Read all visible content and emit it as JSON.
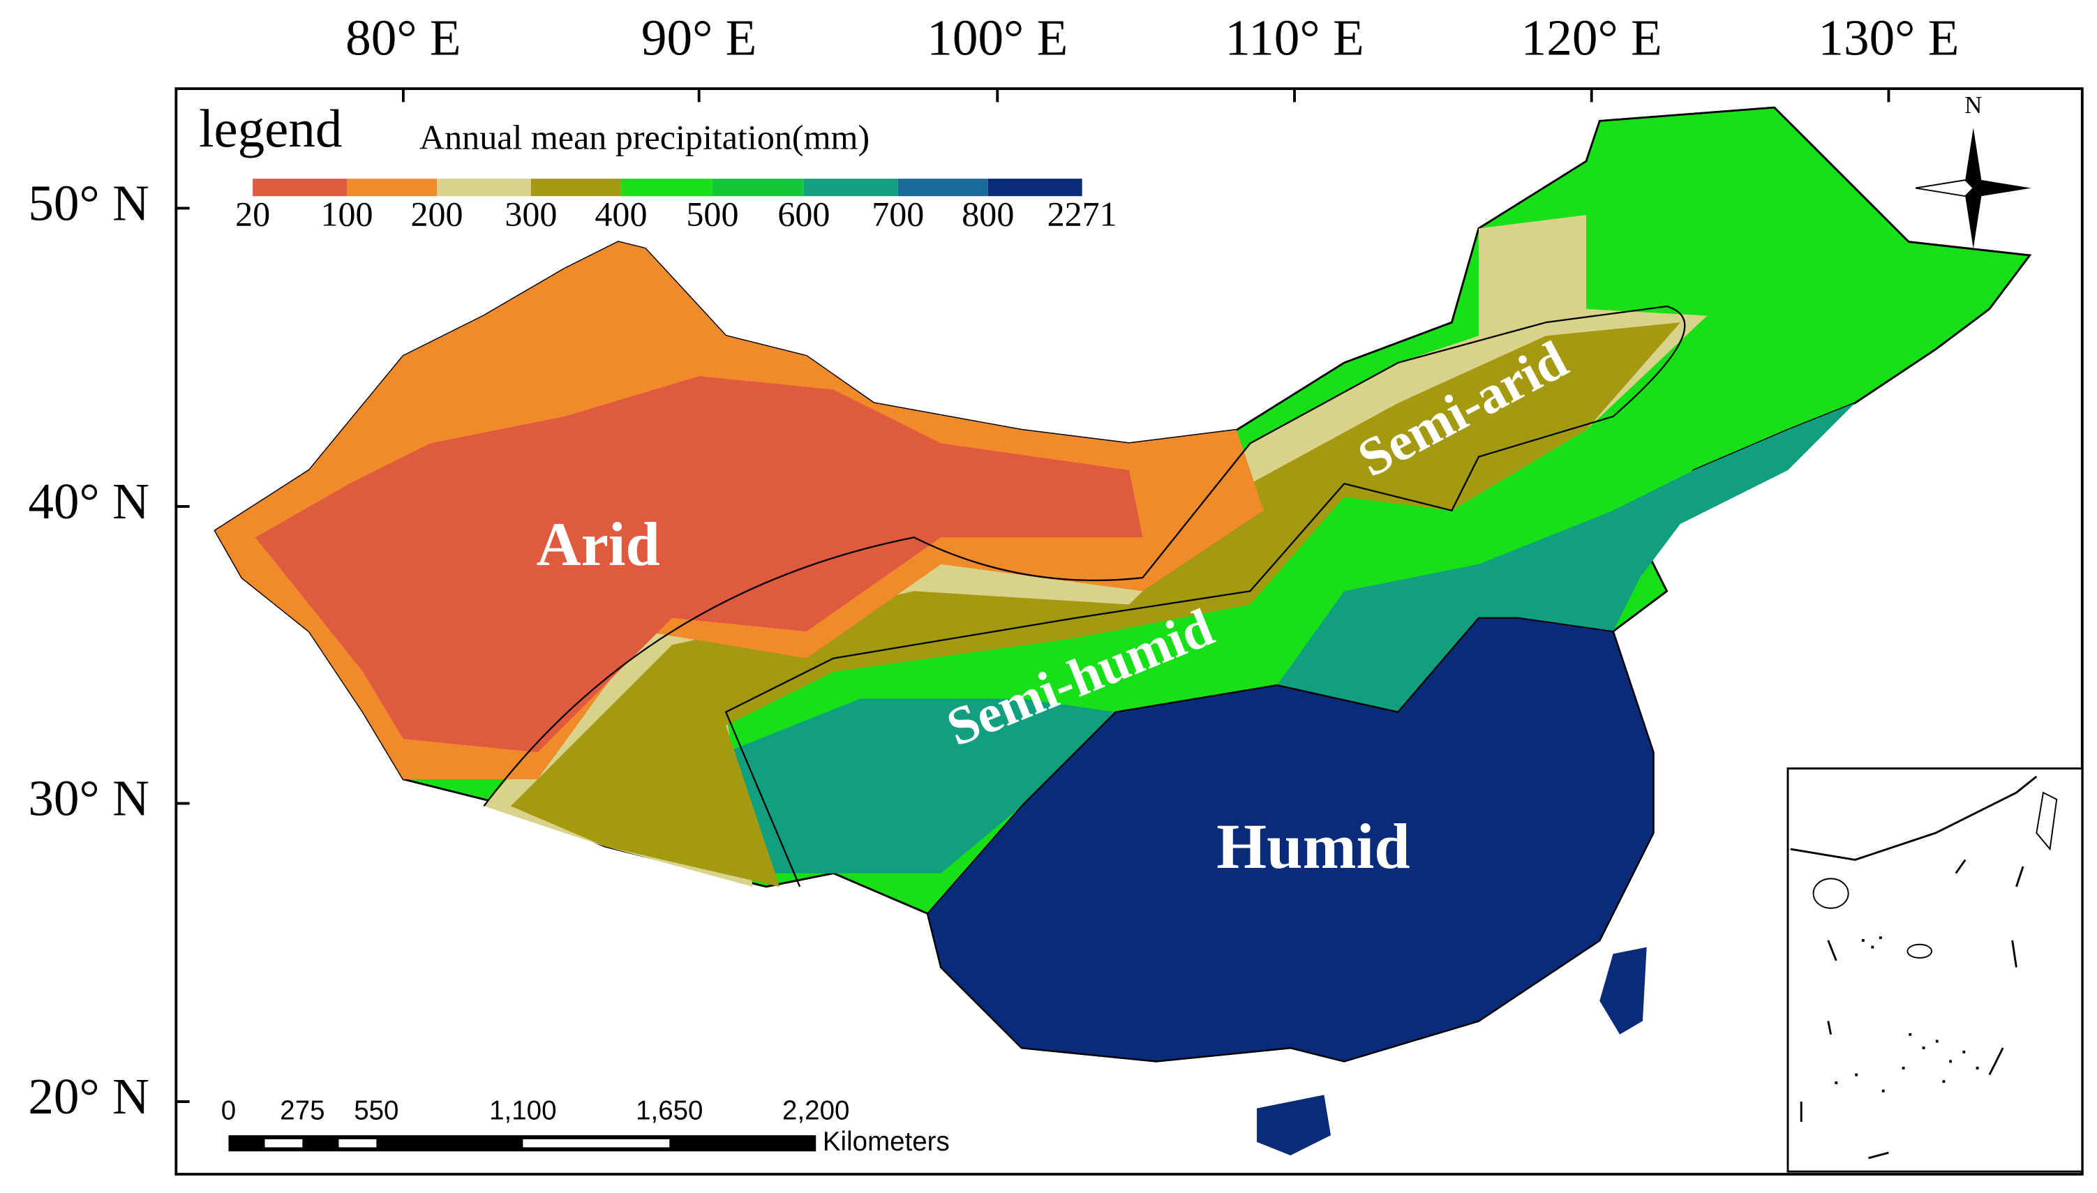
{
  "map": {
    "lon_ticks": [
      "80° E",
      "90° E",
      "100° E",
      "110° E",
      "120° E",
      "130° E"
    ],
    "lat_ticks": [
      "50° N",
      "40° N",
      "30° N",
      "20° N"
    ],
    "legend": {
      "title": "legend",
      "subtitle": "Annual mean precipitation(mm)",
      "breaks": [
        "20",
        "100",
        "200",
        "300",
        "400",
        "500",
        "600",
        "700",
        "800",
        "2271"
      ],
      "colors": [
        "#e05a40",
        "#f08a2a",
        "#d8d28a",
        "#a49a12",
        "#18e018",
        "#10c838",
        "#10a080",
        "#186a9a",
        "#0a2a7a"
      ]
    },
    "regions": [
      {
        "label": "Arid"
      },
      {
        "label": "Semi-arid"
      },
      {
        "label": "Semi-humid"
      },
      {
        "label": "Humid"
      }
    ],
    "scale_bar": {
      "labels": [
        "0",
        "275",
        "550",
        "1,100",
        "1,650",
        "2,200"
      ],
      "unit": "Kilometers"
    },
    "north": "N"
  }
}
